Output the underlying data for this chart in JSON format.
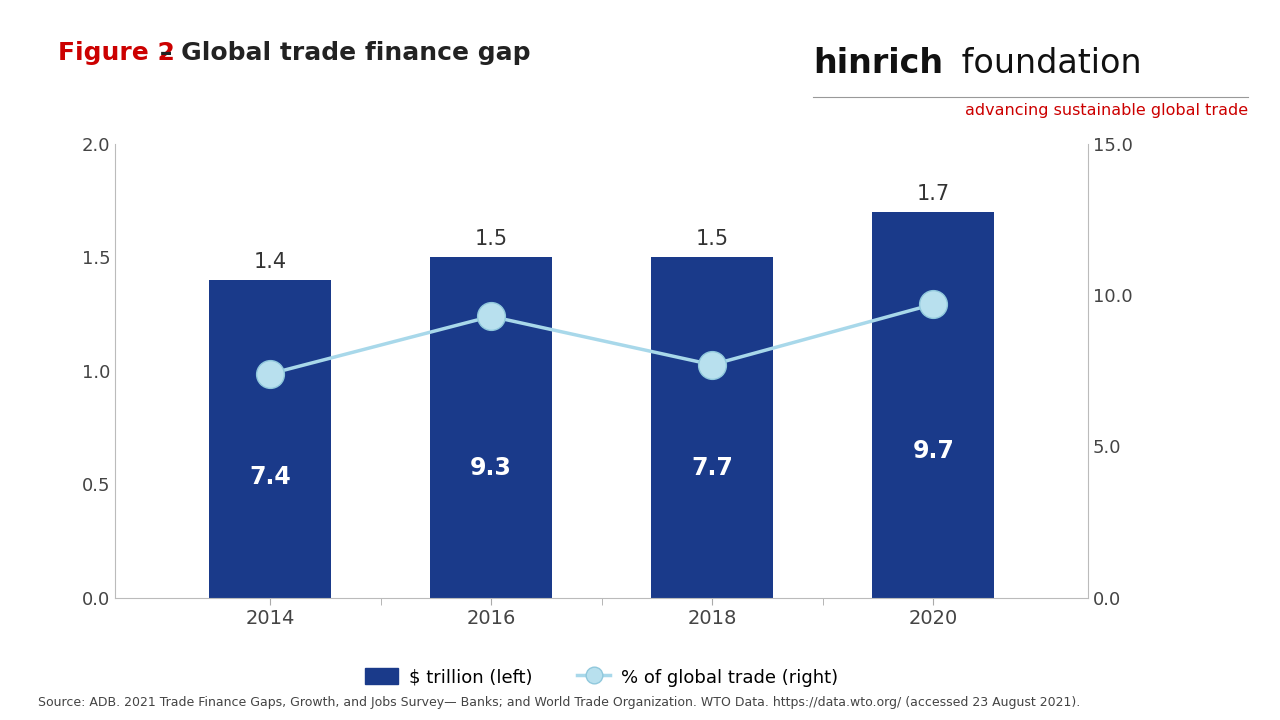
{
  "years": [
    2014,
    2016,
    2018,
    2020
  ],
  "bar_values": [
    1.4,
    1.5,
    1.5,
    1.7
  ],
  "line_values": [
    7.4,
    9.3,
    7.7,
    9.7
  ],
  "bar_color": "#1a3a8a",
  "line_color": "#a8d8ea",
  "line_marker_facecolor": "#b8e0ee",
  "line_marker_edgecolor": "#90c8dc",
  "bar_inside_label_color": "#ffffff",
  "bar_top_label_color": "#333333",
  "background_color": "#ffffff",
  "title_prefix": "Figure 2",
  "title_prefix_color": "#cc0000",
  "title_suffix": " – Global trade finance gap",
  "title_suffix_color": "#222222",
  "left_ylim": [
    0,
    2.0
  ],
  "right_ylim": [
    0,
    15.0
  ],
  "left_yticks": [
    0.0,
    0.5,
    1.0,
    1.5,
    2.0
  ],
  "right_yticks": [
    0.0,
    5.0,
    10.0,
    15.0
  ],
  "logo_text_bold": "hinrich",
  "logo_text_regular": " foundation",
  "logo_subtitle": "advancing sustainable global trade",
  "logo_color_bold": "#111111",
  "logo_color_regular": "#111111",
  "logo_subtitle_color": "#cc0000",
  "source_text": "Source: ADB. 2021 Trade Finance Gaps, Growth, and Jobs Survey— Banks; and World Trade Organization. WTO Data. https://data.wto.org/ (accessed 23 August 2021).",
  "legend_bar_label": "$ trillion (left)",
  "legend_line_label": "% of global trade (right)",
  "bar_width": 0.55
}
